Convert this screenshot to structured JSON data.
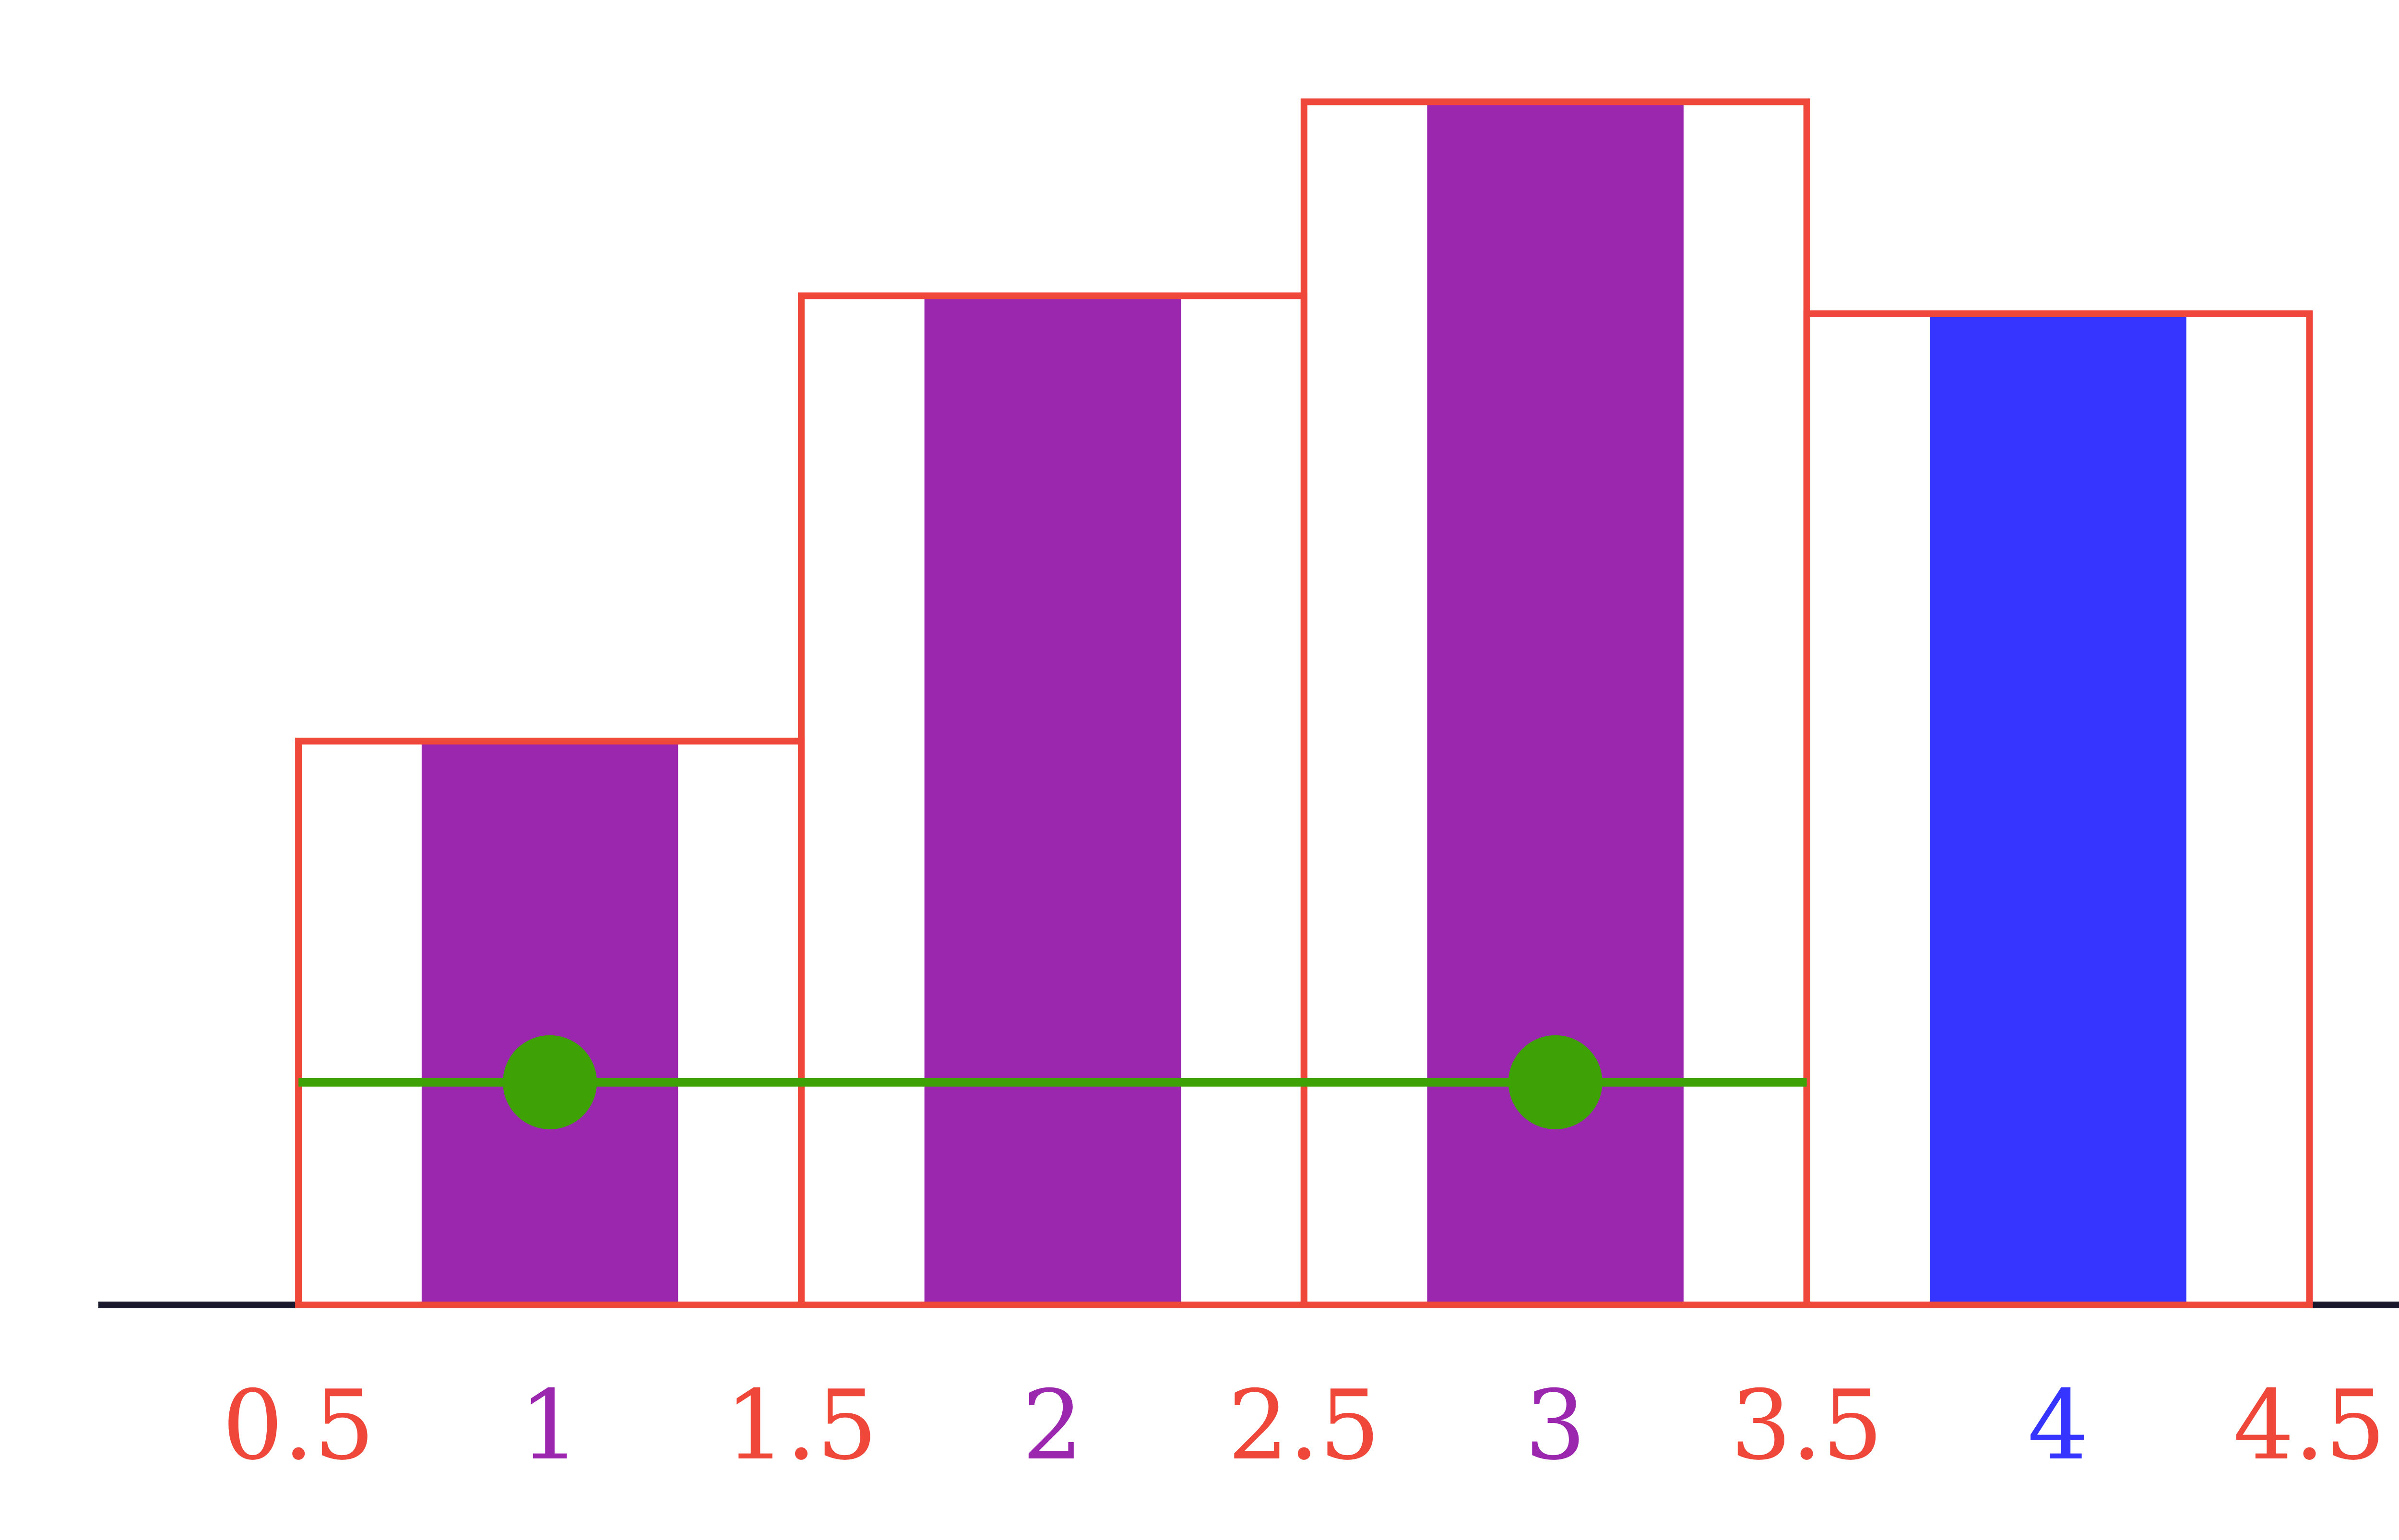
{
  "chart_data": {
    "type": "bar",
    "categories": [
      "1",
      "2",
      "3",
      "4"
    ],
    "values": [
      3.14,
      5.62,
      6.7,
      5.52
    ],
    "bar_colors": [
      "#9b27af",
      "#9b27af",
      "#9b27af",
      "#3535ff"
    ],
    "histogram_bins": {
      "edges": [
        0.5,
        1.5,
        2.5,
        3.5,
        4.5
      ],
      "heights": [
        3.14,
        5.62,
        6.7,
        5.52
      ],
      "outline_color": "#ef473a"
    },
    "reference_line": {
      "y": 1.24,
      "x_start": 0.5,
      "x_end": 3.5,
      "color": "#3ea206",
      "points": [
        {
          "x": 1,
          "y": 1.24
        },
        {
          "x": 3,
          "y": 1.24
        }
      ]
    },
    "x_ticks": [
      {
        "value": 0.5,
        "label": "0.5",
        "color": "#ef473a"
      },
      {
        "value": 1,
        "label": "1",
        "color": "#9b27af"
      },
      {
        "value": 1.5,
        "label": "1.5",
        "color": "#ef473a"
      },
      {
        "value": 2,
        "label": "2",
        "color": "#9b27af"
      },
      {
        "value": 2.5,
        "label": "2.5",
        "color": "#ef473a"
      },
      {
        "value": 3,
        "label": "3",
        "color": "#9b27af"
      },
      {
        "value": 3.5,
        "label": "3.5",
        "color": "#ef473a"
      },
      {
        "value": 4,
        "label": "4",
        "color": "#3535ff"
      },
      {
        "value": 4.5,
        "label": "4.5",
        "color": "#ef473a"
      }
    ],
    "axis_color": "#1a1a2e",
    "xlim": [
      0.1,
      4.7
    ],
    "ylim": [
      0,
      7
    ],
    "title": "",
    "xlabel": "",
    "ylabel": "",
    "grid": false
  }
}
